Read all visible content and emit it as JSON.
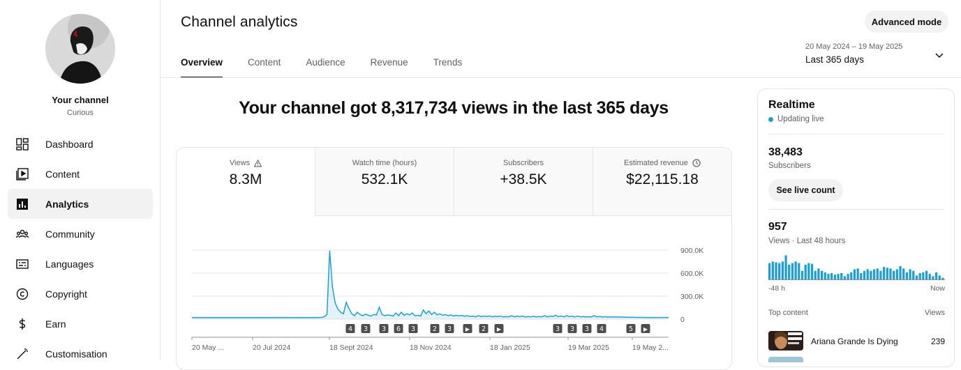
{
  "sidebar": {
    "channel_name": "Your channel",
    "channel_handle": "Curious",
    "items": [
      {
        "label": "Dashboard",
        "icon": "dashboard-icon"
      },
      {
        "label": "Content",
        "icon": "content-icon"
      },
      {
        "label": "Analytics",
        "icon": "analytics-icon",
        "active": true
      },
      {
        "label": "Community",
        "icon": "community-icon"
      },
      {
        "label": "Languages",
        "icon": "languages-icon"
      },
      {
        "label": "Copyright",
        "icon": "copyright-icon"
      },
      {
        "label": "Earn",
        "icon": "earn-icon"
      },
      {
        "label": "Customisation",
        "icon": "customisation-icon"
      }
    ]
  },
  "header": {
    "title": "Channel analytics",
    "advanced_mode": "Advanced mode",
    "tabs": [
      "Overview",
      "Content",
      "Audience",
      "Revenue",
      "Trends"
    ],
    "active_tab": "Overview",
    "date_range": "20 May 2024 – 19 May 2025",
    "period": "Last 365 days"
  },
  "main": {
    "headline": "Your channel got 8,317,734 views in the last 365 days",
    "metrics": [
      {
        "label": "Views",
        "value": "8.3M",
        "icon": "warning-icon"
      },
      {
        "label": "Watch time (hours)",
        "value": "532.1K"
      },
      {
        "label": "Subscribers",
        "value": "+38.5K"
      },
      {
        "label": "Estimated revenue",
        "value": "$22,115.18",
        "icon": "clock-icon"
      }
    ]
  },
  "chart_data": {
    "type": "line",
    "y_ticks": [
      "900.0K",
      "600.0K",
      "300.0K",
      "0"
    ],
    "ylim": [
      0,
      900000
    ],
    "x_labels": [
      "20 May ...",
      "20 Jul 2024",
      "18 Sept 2024",
      "18 Nov 2024",
      "18 Jan 2025",
      "19 Mar 2025",
      "19 May 2..."
    ],
    "grid": true,
    "series": [
      {
        "values": [
          22000,
          21000,
          22000,
          21000,
          22000,
          21000,
          22000,
          21000,
          22000,
          21000,
          22000,
          21000,
          22000,
          21000,
          22000,
          21000,
          22000,
          21000,
          22000,
          21000,
          22000,
          21000,
          22000,
          21000,
          22000,
          21000,
          22000,
          21000,
          22000,
          21000,
          22000,
          21000,
          22000,
          21000,
          22000,
          21000,
          22000,
          21000,
          22000,
          21000,
          22000,
          21000,
          22000,
          21000,
          22000,
          21000,
          22000,
          23000,
          30000,
          60000,
          895000,
          420000,
          210000,
          130000,
          90000,
          70000,
          220000,
          140000,
          70000,
          45000,
          90000,
          60000,
          45000,
          65000,
          50000,
          40000,
          60000,
          55000,
          155000,
          60000,
          45000,
          55000,
          50000,
          40000,
          80000,
          45000,
          90000,
          50000,
          70000,
          55000,
          80000,
          45000,
          50000,
          40000,
          120000,
          70000,
          105000,
          60000,
          90000,
          55000,
          70000,
          50000,
          60000,
          45000,
          55000,
          40000,
          50000,
          42000,
          48000,
          38000,
          45000,
          35000,
          40000,
          30000,
          45000,
          32000,
          40000,
          35000,
          42000,
          30000,
          38000,
          32000,
          40000,
          28000,
          35000,
          30000,
          45000,
          30000,
          38000,
          32000,
          40000,
          28000,
          35000,
          30000,
          38000,
          28000,
          35000,
          30000,
          45000,
          30000,
          38000,
          35000,
          50000,
          32000,
          40000,
          30000,
          45000,
          32000,
          38000,
          28000,
          40000,
          30000,
          35000,
          28000,
          32000,
          30000,
          45000,
          30000,
          35000,
          28000,
          32000,
          26000,
          30000,
          28000,
          30000,
          26000,
          28000,
          25000,
          26000,
          24000,
          25000,
          23000,
          24000,
          23000,
          22000,
          22000,
          22000,
          22000,
          22000,
          22000,
          22000,
          22000,
          22000,
          22000
        ]
      }
    ],
    "markers": [
      "4",
      "3",
      "3",
      "6",
      "3",
      "2",
      "3",
      "▶",
      "2",
      "▶",
      "3",
      "3",
      "3",
      "4",
      "5",
      "▶"
    ]
  },
  "realtime": {
    "title": "Realtime",
    "status": "Updating live",
    "subscribers_value": "38,483",
    "subscribers_label": "Subscribers",
    "live_count_button": "See live count",
    "views_value": "957",
    "views_label": "Views · Last 48 hours",
    "axis_left": "-48 h",
    "axis_right": "Now",
    "bars": [
      22,
      24,
      23,
      22,
      24,
      32,
      20,
      22,
      24,
      22,
      12,
      20,
      22,
      21,
      12,
      15,
      12,
      10,
      8,
      9,
      7,
      8,
      9,
      5,
      8,
      10,
      14,
      15,
      9,
      12,
      14,
      12,
      14,
      15,
      12,
      17,
      16,
      15,
      12,
      14,
      18,
      15,
      10,
      14,
      12,
      6,
      9,
      10,
      12,
      8,
      5,
      10,
      6,
      3
    ],
    "top_content_label": "Top content",
    "views_col_label": "Views",
    "top_items": [
      {
        "title": "Ariana Grande Is Dying",
        "views": "239"
      }
    ],
    "accent_color": "#1f9fd1"
  }
}
